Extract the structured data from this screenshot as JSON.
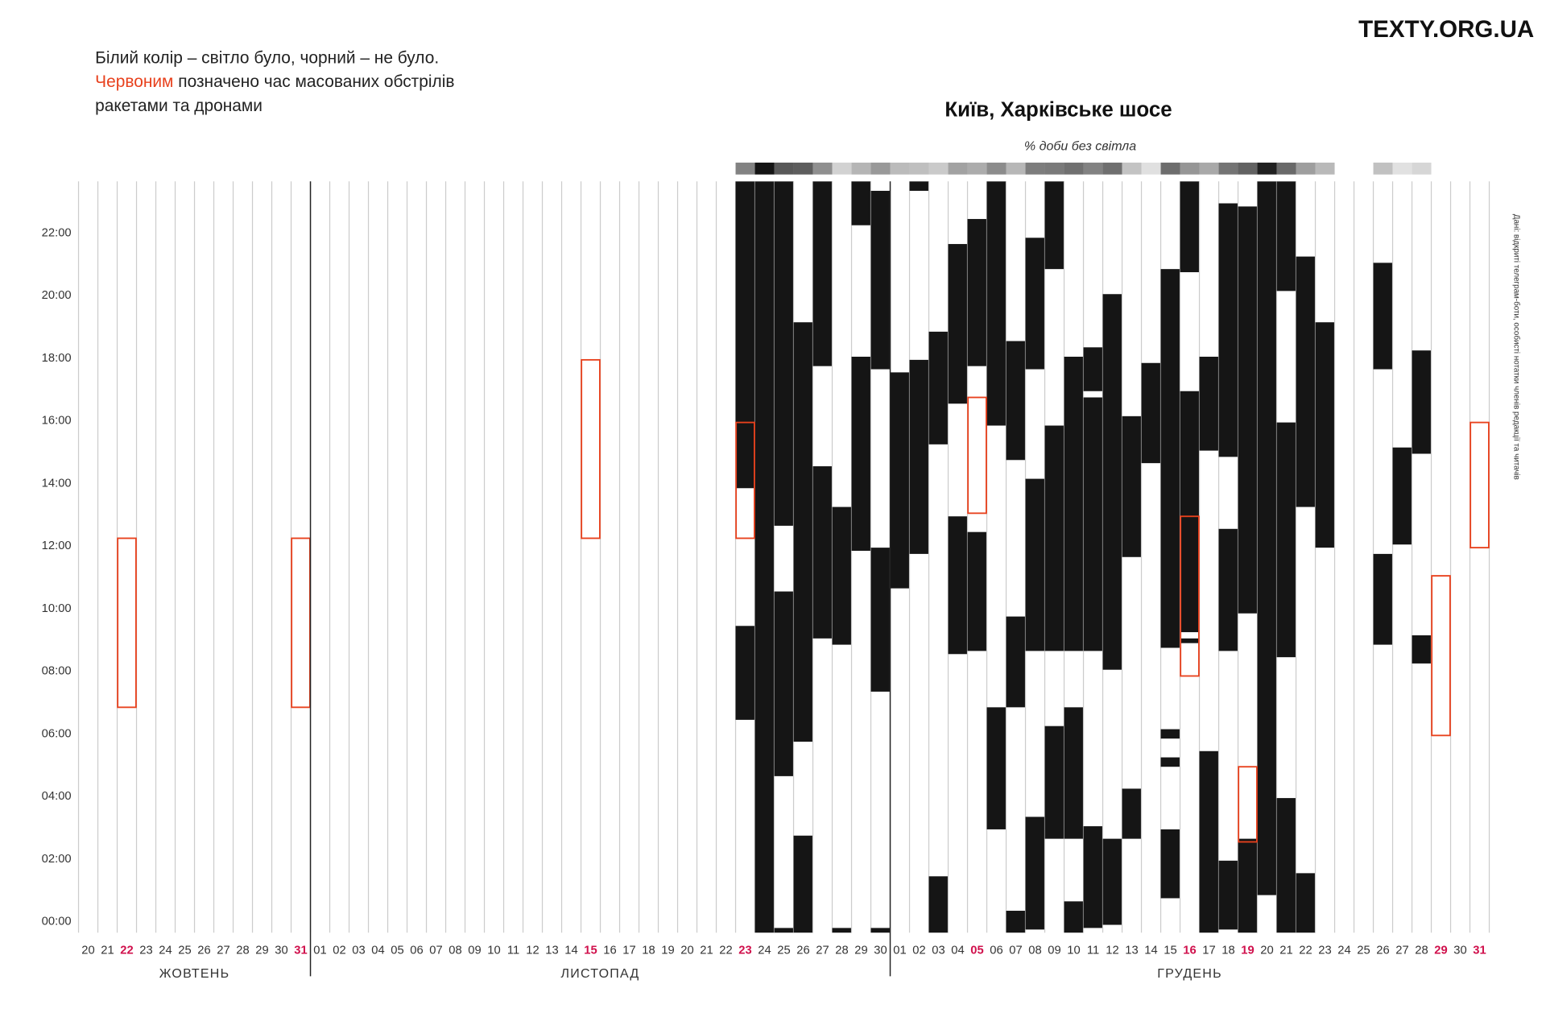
{
  "chart_data": {
    "type": "outage-timeline",
    "brand": "TEXTY.ORG.UA",
    "note_lines": [
      {
        "parts": [
          {
            "text": "Білий колір – світло було, чорний – не було."
          }
        ]
      },
      {
        "parts": [
          {
            "text": "Червоним",
            "red": true
          },
          {
            "text": " позначено час масованих обстрілів"
          }
        ]
      },
      {
        "parts": [
          {
            "text": "ракетами та дронами"
          }
        ]
      }
    ],
    "title": "Київ, Харківське шосе",
    "strip_label": "% доби без світла",
    "source": "Дані: відкриті телеграм-боти, особисті нотатки членів редакції та читачів",
    "colors": {
      "off": "#151515",
      "shelling": "#e8411d",
      "highlight": "#d0104c"
    },
    "ylim": [
      0,
      24
    ],
    "yticks": [
      {
        "value": 0,
        "label": "00:00"
      },
      {
        "value": 2,
        "label": "02:00"
      },
      {
        "value": 4,
        "label": "04:00"
      },
      {
        "value": 6,
        "label": "06:00"
      },
      {
        "value": 8,
        "label": "08:00"
      },
      {
        "value": 10,
        "label": "10:00"
      },
      {
        "value": 12,
        "label": "12:00"
      },
      {
        "value": 14,
        "label": "14:00"
      },
      {
        "value": 16,
        "label": "16:00"
      },
      {
        "value": 18,
        "label": "18:00"
      },
      {
        "value": 20,
        "label": "20:00"
      },
      {
        "value": 22,
        "label": "22:00"
      }
    ],
    "months": [
      {
        "label": "ЖОВТЕНЬ",
        "days": [
          {
            "label": "20"
          },
          {
            "label": "21"
          },
          {
            "label": "22",
            "shelling": [
              7.2,
              12.6
            ]
          },
          {
            "label": "23"
          },
          {
            "label": "24"
          },
          {
            "label": "25"
          },
          {
            "label": "26"
          },
          {
            "label": "27"
          },
          {
            "label": "28"
          },
          {
            "label": "29"
          },
          {
            "label": "30"
          },
          {
            "label": "31",
            "shelling": [
              7.2,
              12.6
            ]
          }
        ]
      },
      {
        "label": "ЛИСТОПАД",
        "days": [
          {
            "label": "01"
          },
          {
            "label": "02"
          },
          {
            "label": "03"
          },
          {
            "label": "04"
          },
          {
            "label": "05"
          },
          {
            "label": "06"
          },
          {
            "label": "07"
          },
          {
            "label": "08"
          },
          {
            "label": "09"
          },
          {
            "label": "10"
          },
          {
            "label": "11"
          },
          {
            "label": "12"
          },
          {
            "label": "13"
          },
          {
            "label": "14"
          },
          {
            "label": "15",
            "shelling": [
              12.6,
              18.3
            ]
          },
          {
            "label": "16"
          },
          {
            "label": "17"
          },
          {
            "label": "18"
          },
          {
            "label": "19"
          },
          {
            "label": "20"
          },
          {
            "label": "21"
          },
          {
            "label": "22"
          },
          {
            "label": "23",
            "off": [
              [
                14.2,
                24
              ],
              [
                6.8,
                9.8
              ]
            ],
            "shelling": [
              12.6,
              16.3
            ]
          },
          {
            "label": "24",
            "off": [
              [
                0,
                24
              ]
            ]
          },
          {
            "label": "25",
            "off": [
              [
                13,
                24
              ],
              [
                5,
                10.9
              ],
              [
                0,
                0.15
              ]
            ]
          },
          {
            "label": "26",
            "off": [
              [
                6.1,
                19.5
              ],
              [
                0,
                3.1
              ]
            ]
          },
          {
            "label": "27",
            "off": [
              [
                18.1,
                24
              ],
              [
                9.4,
                14.9
              ]
            ]
          },
          {
            "label": "28",
            "off": [
              [
                9.2,
                13.6
              ],
              [
                0,
                0.15
              ]
            ]
          },
          {
            "label": "29",
            "off": [
              [
                22.6,
                24
              ],
              [
                12.2,
                18.4
              ]
            ]
          },
          {
            "label": "30",
            "off": [
              [
                18,
                23.7
              ],
              [
                7.7,
                12.3
              ],
              [
                0,
                0.15
              ]
            ]
          }
        ]
      },
      {
        "label": "ГРУДЕНЬ",
        "days": [
          {
            "label": "01",
            "off": [
              [
                11,
                17.9
              ]
            ]
          },
          {
            "label": "02",
            "off": [
              [
                23.7,
                24
              ],
              [
                12.1,
                18.3
              ]
            ]
          },
          {
            "label": "03",
            "off": [
              [
                15.6,
                19.2
              ],
              [
                0,
                1.8
              ]
            ]
          },
          {
            "label": "04",
            "off": [
              [
                16.9,
                22
              ],
              [
                8.9,
                13.3
              ]
            ]
          },
          {
            "label": "05",
            "off": [
              [
                18.1,
                22.8
              ],
              [
                9,
                12.8
              ]
            ],
            "shelling": [
              13.4,
              17.1
            ]
          },
          {
            "label": "06",
            "off": [
              [
                16.2,
                24
              ],
              [
                3.3,
                7.2
              ]
            ]
          },
          {
            "label": "07",
            "off": [
              [
                15.1,
                18.9
              ],
              [
                7.2,
                10.1
              ],
              [
                0,
                0.7
              ]
            ]
          },
          {
            "label": "08",
            "off": [
              [
                18,
                22.2
              ],
              [
                9,
                14.5
              ],
              [
                0.1,
                3.7
              ]
            ]
          },
          {
            "label": "09",
            "off": [
              [
                21.2,
                24
              ],
              [
                9,
                16.2
              ],
              [
                3,
                6.6
              ]
            ]
          },
          {
            "label": "10",
            "off": [
              [
                9,
                18.4
              ],
              [
                3,
                7.2
              ],
              [
                0,
                1
              ]
            ]
          },
          {
            "label": "11",
            "off": [
              [
                17.3,
                18.7
              ],
              [
                9,
                17.1
              ],
              [
                0.15,
                3.4
              ]
            ]
          },
          {
            "label": "12",
            "off": [
              [
                8.4,
                20.4
              ],
              [
                0.25,
                3
              ]
            ]
          },
          {
            "label": "13",
            "off": [
              [
                12,
                16.5
              ],
              [
                3,
                4.6
              ]
            ]
          },
          {
            "label": "14",
            "off": [
              [
                15,
                18.2
              ]
            ]
          },
          {
            "label": "15",
            "off": [
              [
                9.1,
                21.2
              ],
              [
                6.2,
                6.5
              ],
              [
                5.3,
                5.6
              ],
              [
                1.1,
                3.3
              ]
            ]
          },
          {
            "label": "16",
            "off": [
              [
                21.1,
                24
              ],
              [
                9.6,
                17.3
              ],
              [
                9.25,
                9.4
              ]
            ],
            "shelling": [
              8.2,
              13.3
            ]
          },
          {
            "label": "17",
            "off": [
              [
                15.4,
                18.4
              ],
              [
                0,
                5.8
              ]
            ]
          },
          {
            "label": "18",
            "off": [
              [
                15.2,
                23.3
              ],
              [
                9,
                12.9
              ],
              [
                0.1,
                2.3
              ]
            ]
          },
          {
            "label": "19",
            "off": [
              [
                10.2,
                23.2
              ],
              [
                0,
                3
              ]
            ],
            "shelling": [
              2.9,
              5.3
            ]
          },
          {
            "label": "20",
            "off": [
              [
                1.2,
                24
              ]
            ]
          },
          {
            "label": "21",
            "off": [
              [
                20.5,
                24
              ],
              [
                8.8,
                16.3
              ],
              [
                0,
                4.3
              ]
            ]
          },
          {
            "label": "22",
            "off": [
              [
                13.6,
                21.6
              ],
              [
                0,
                1.9
              ]
            ]
          },
          {
            "label": "23",
            "off": [
              [
                12.3,
                19.5
              ]
            ]
          },
          {
            "label": "24"
          },
          {
            "label": "25"
          },
          {
            "label": "26",
            "off": [
              [
                18,
                21.4
              ],
              [
                9.2,
                12.1
              ]
            ]
          },
          {
            "label": "27",
            "off": [
              [
                12.4,
                15.5
              ]
            ]
          },
          {
            "label": "28",
            "off": [
              [
                15.3,
                18.6
              ],
              [
                8.6,
                9.5
              ]
            ]
          },
          {
            "label": "29",
            "shelling": [
              6.3,
              11.4
            ]
          },
          {
            "label": "30"
          },
          {
            "label": "31",
            "shelling": [
              12.3,
              16.3
            ]
          }
        ]
      }
    ]
  }
}
